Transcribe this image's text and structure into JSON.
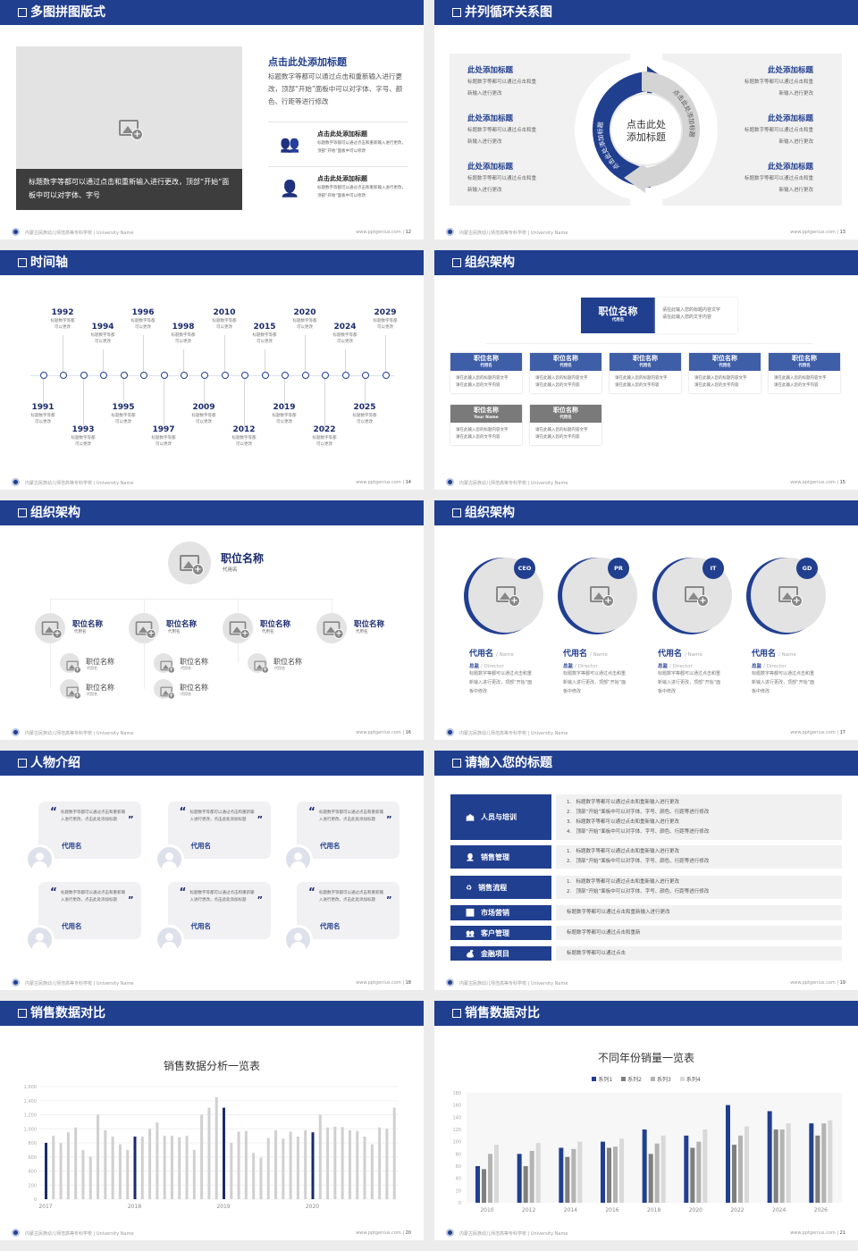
{
  "footer": {
    "school": "内蒙古民族幼儿师范高等专科学校 | University Name",
    "site": "www.pptgenius.com"
  },
  "colors": {
    "primary": "#213f8f",
    "secondary": "#3f5ea8",
    "gray_header": "#7a7a7a",
    "light_panel": "#f1f1f1"
  },
  "s12": {
    "title": "多图拼图版式",
    "page": "12",
    "image_icon": "image-placeholder-icon",
    "caption": "标题数字等都可以通过点击和重新输入进行更改，顶部“开始”面板中可以对字体、字号",
    "heading": "点击此处添加标题",
    "para": "标题数字等都可以通过点击和重新输入进行更改，顶部“开始”面板中可以对字体、字号、颜色、行距等进行修改",
    "items": [
      {
        "icon": "users-icon",
        "title": "点击此处添加标题",
        "text": "标题数字等都可以通过点击和重新输入进行更改，顶部“开始”面板中可以修改"
      },
      {
        "icon": "user-icon",
        "title": "点击此处添加标题",
        "text": "标题数字等都可以通过点击和重新输入进行更改，顶部“开始”面板中可以修改"
      }
    ]
  },
  "s13": {
    "title": "并列循环关系图",
    "page": "13",
    "center": [
      "点击此处",
      "添加标题"
    ],
    "arc_left": "点击此处添加标题",
    "arc_right": "点击此处添加标题",
    "left": [
      {
        "title": "此处添加标题",
        "text": [
          "标题数字等都可以通过点击和重",
          "新输入进行更改"
        ]
      },
      {
        "title": "此处添加标题",
        "text": [
          "标题数字等都可以通过点击和重",
          "新输入进行更改"
        ]
      },
      {
        "title": "此处添加标题",
        "text": [
          "标题数字等都可以通过点击和重",
          "新输入进行更改"
        ]
      }
    ],
    "right": [
      {
        "title": "此处添加标题",
        "text": [
          "标题数字等都可以通过点击和重",
          "新输入进行更改"
        ]
      },
      {
        "title": "此处添加标题",
        "text": [
          "标题数字等都可以通过点击和重",
          "新输入进行更改"
        ]
      },
      {
        "title": "此处添加标题",
        "text": [
          "标题数字等都可以通过点击和重",
          "新输入进行更改"
        ]
      }
    ]
  },
  "s14": {
    "title": "时间轴",
    "page": "14",
    "desc": [
      "标题数字等都",
      "可以更改"
    ],
    "events": [
      "1991",
      "1992",
      "1993",
      "1994",
      "1995",
      "1996",
      "1997",
      "1998",
      "2009",
      "2010",
      "2012",
      "2015",
      "2019",
      "2020",
      "2022",
      "2024",
      "2025",
      "2029"
    ]
  },
  "s15": {
    "title": "组织架构",
    "page": "15",
    "top": {
      "name": "职位名称",
      "sub": "代用名",
      "text": [
        "请在此输入您的标题内容文字",
        "请在此输入您的文字内容"
      ]
    },
    "row1": [
      {
        "name": "职位名称",
        "sub": "代用名"
      },
      {
        "name": "职位名称",
        "sub": "代用名"
      },
      {
        "name": "职位名称",
        "sub": "代用名"
      },
      {
        "name": "职位名称",
        "sub": "代用名"
      },
      {
        "name": "职位名称",
        "sub": "代用名"
      }
    ],
    "row2": [
      {
        "name": "职位名称",
        "sub": "Your Name"
      },
      {
        "name": "职位名称",
        "sub": "代用名"
      }
    ],
    "box_text": [
      "请在此输入您的标题内容文字",
      "请在此输入您的文字内容"
    ]
  },
  "s16": {
    "title": "组织架构",
    "page": "16",
    "top": {
      "name": "职位名称",
      "sub": "代用名"
    },
    "level2": [
      {
        "name": "职位名称",
        "sub": "代用名"
      },
      {
        "name": "职位名称",
        "sub": "代用名"
      },
      {
        "name": "职位名称",
        "sub": "代用名"
      },
      {
        "name": "职位名称",
        "sub": "代用名"
      }
    ],
    "level3": [
      {
        "parent": 0,
        "name": "职位名称",
        "sub": "代用名"
      },
      {
        "parent": 0,
        "name": "职位名称",
        "sub": "代用名"
      },
      {
        "parent": 1,
        "name": "职位名称",
        "sub": "代用名"
      },
      {
        "parent": 1,
        "name": "职位名称",
        "sub": "代用名"
      },
      {
        "parent": 2,
        "name": "职位名称",
        "sub": "代用名"
      }
    ]
  },
  "s17": {
    "title": "组织架构",
    "page": "17",
    "people": [
      {
        "badge": "CEO",
        "name": "代用名",
        "name_en": "/ Name",
        "role": "总监",
        "role_en": "/  Director",
        "text": "标题数字等都可以通过点击和重新输入进行更改，顶部“开始”面板中修改"
      },
      {
        "badge": "PR",
        "name": "代用名",
        "name_en": "/ Name",
        "role": "总监",
        "role_en": "/  Director",
        "text": "标题数字等都可以通过点击和重新输入进行更改，顶部“开始”面板中修改"
      },
      {
        "badge": "IT",
        "name": "代用名",
        "name_en": "/ Name",
        "role": "总监",
        "role_en": "/  Director",
        "text": "标题数字等都可以通过点击和重新输入进行更改，顶部“开始”面板中修改"
      },
      {
        "badge": "GD",
        "name": "代用名",
        "name_en": "/ Name",
        "role": "总监",
        "role_en": "/  Director",
        "text": "标题数字等都可以通过点击和重新输入进行更改，顶部“开始”面板中修改"
      }
    ]
  },
  "s18": {
    "title": "人物介绍",
    "page": "18",
    "quotes": [
      {
        "text": "标题数字等都可以通过点击和重新输入进行更改，点击此处添加标题",
        "name": "代用名"
      },
      {
        "text": "标题数字等都可以通过点击和重新输入进行更改，点击此处添加标题",
        "name": "代用名"
      },
      {
        "text": "标题数字等都可以通过点击和重新输入进行更改，点击此处添加标题",
        "name": "代用名"
      },
      {
        "text": "标题数字等都可以通过点击和重新输入进行更改，点击此处添加标题",
        "name": "代用名"
      },
      {
        "text": "标题数字等都可以通过点击和重新输入进行更改，点击此处添加标题",
        "name": "代用名"
      },
      {
        "text": "标题数字等都可以通过点击和重新输入进行更改，点击此处添加标题",
        "name": "代用名"
      }
    ]
  },
  "s19": {
    "title": "请输入您的标题",
    "page": "19",
    "rows": [
      {
        "icon": "training-icon",
        "label": "人员与培训",
        "lines": [
          "1.   标题数字等都可以通过点击和重新输入进行更改",
          "2.   顶部“开始”面板中可以对字体、字号、颜色、行距等进行修改",
          "3.   标题数字等都可以通过点击和重新输入进行更改",
          "4.   顶部“开始”面板中可以对字体、字号、颜色、行距等进行修改"
        ]
      },
      {
        "icon": "sales-management-icon",
        "label": "销售管理",
        "lines": [
          "1.   标题数字等都可以通过点击和重新输入进行更改",
          "2.   顶部“开始”面板中可以对字体、字号、颜色、行距等进行修改"
        ]
      },
      {
        "icon": "sales-process-icon",
        "label": "销售流程",
        "lines": [
          "1.   标题数字等都可以通过点击和重新输入进行更改",
          "2.   顶部“开始”面板中可以对字体、字号、颜色、行距等进行修改"
        ]
      },
      {
        "icon": "bar-chart-icon",
        "label": "市场营销",
        "lines": [
          "标题数字等都可以通过点击和重新输入进行更改"
        ]
      },
      {
        "icon": "customers-icon",
        "label": "客户管理",
        "lines": [
          "标题数字等都可以通过点击和重新"
        ]
      },
      {
        "icon": "finance-icon",
        "label": "金融项目",
        "lines": [
          "标题数字等都可以通过点击"
        ]
      }
    ]
  },
  "s20": {
    "title": "销售数据对比",
    "page": "20"
  },
  "s21": {
    "title": "销售数据对比",
    "page": "21"
  },
  "chart_data": [
    {
      "type": "bar",
      "title": "销售数据分析一览表",
      "ylim": [
        0,
        1600
      ],
      "yticks": [
        "0",
        "200",
        "400",
        "600",
        "800",
        "1,000",
        "1,200",
        "1,400",
        "1,600"
      ],
      "xlabels": [
        "2017",
        "2018",
        "2019",
        "2020"
      ],
      "grid": true,
      "highlight_color": "#1a2a6c",
      "bar_color": "#d0d0d0",
      "values": [
        800,
        900,
        800,
        950,
        1020,
        700,
        600,
        1200,
        980,
        890,
        780,
        700,
        890,
        890,
        1000,
        1090,
        900,
        900,
        880,
        900,
        700,
        1200,
        1300,
        1450,
        1300,
        800,
        960,
        970,
        660,
        590,
        870,
        980,
        860,
        960,
        890,
        980,
        950,
        1200,
        1020,
        1030,
        1025,
        980,
        970,
        890,
        780,
        1020,
        1000,
        1300
      ]
    },
    {
      "type": "bar",
      "title": "不同年份销量一览表",
      "ylim": [
        0,
        180
      ],
      "yticks": [
        "0",
        "20",
        "40",
        "60",
        "80",
        "100",
        "120",
        "140",
        "160",
        "180"
      ],
      "legend": "top",
      "grid": true,
      "categories": [
        "2010",
        "2012",
        "2014",
        "2016",
        "2018",
        "2020",
        "2022",
        "2024",
        "2026"
      ],
      "series": [
        {
          "name": "系列1",
          "color": "#213f8f",
          "values": [
            60,
            80,
            90,
            100,
            120,
            110,
            160,
            150,
            130
          ]
        },
        {
          "name": "系列2",
          "color": "#7f7f7f",
          "values": [
            55,
            60,
            75,
            90,
            80,
            90,
            95,
            120,
            110
          ]
        },
        {
          "name": "系列3",
          "color": "#b3b3b3",
          "values": [
            80,
            85,
            88,
            92,
            97,
            100,
            110,
            120,
            130
          ]
        },
        {
          "name": "系列4",
          "color": "#d9d9d9",
          "values": [
            95,
            98,
            100,
            105,
            110,
            120,
            125,
            130,
            135
          ]
        }
      ]
    }
  ]
}
